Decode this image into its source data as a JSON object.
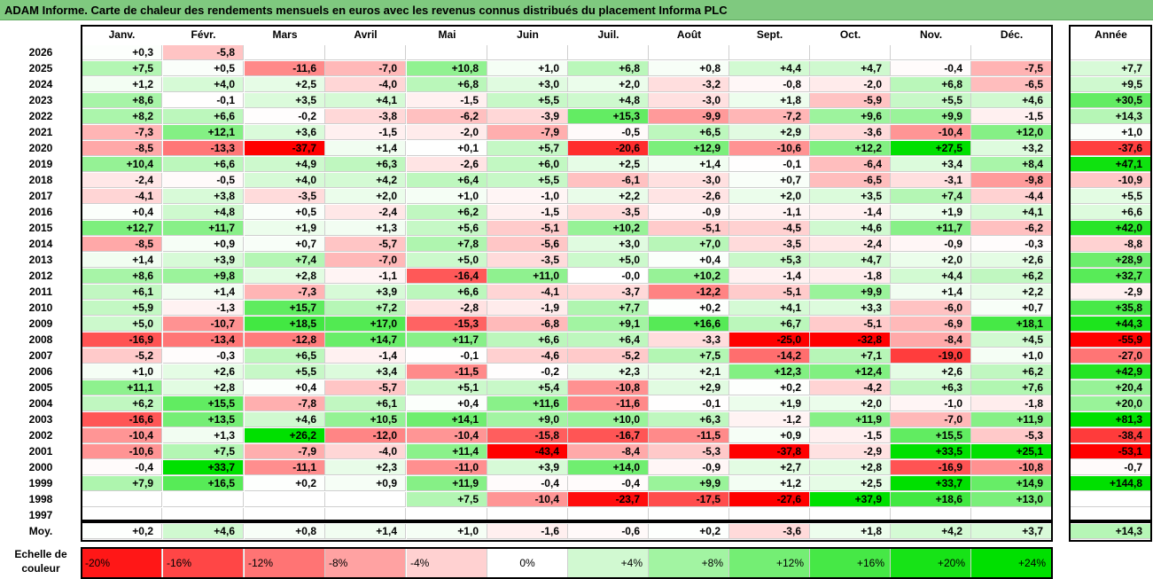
{
  "title": "ADAM Informe. Carte de chaleur des rendements mensuels en euros avec les revenus connus distribués du placement Informa PLC",
  "chart_data": {
    "type": "heatmap",
    "title": "ADAM Informe. Carte de chaleur des rendements mensuels en euros avec les revenus connus distribués du placement Informa PLC",
    "columns": [
      "Janv.",
      "Févr.",
      "Mars",
      "Avril",
      "Mai",
      "Juin",
      "Juil.",
      "Août",
      "Sept.",
      "Oct.",
      "Nov.",
      "Déc."
    ],
    "annual_header": "Année",
    "rows": [
      {
        "year": "2026",
        "values": [
          "+0,3",
          "-5,8",
          "",
          "",
          "",
          "",
          "",
          "",
          "",
          "",
          "",
          ""
        ],
        "annual": ""
      },
      {
        "year": "2025",
        "values": [
          "+7,5",
          "+0,5",
          "-11,6",
          "-7,0",
          "+10,8",
          "+1,0",
          "+6,8",
          "+0,8",
          "+4,4",
          "+4,7",
          "-0,4",
          "-7,5"
        ],
        "annual": "+7,7"
      },
      {
        "year": "2024",
        "values": [
          "+1,2",
          "+4,0",
          "+2,5",
          "-4,0",
          "+6,8",
          "+3,0",
          "+2,0",
          "-3,2",
          "-0,8",
          "-2,0",
          "+6,8",
          "-6,5"
        ],
        "annual": "+9,5"
      },
      {
        "year": "2023",
        "values": [
          "+8,6",
          "-0,1",
          "+3,5",
          "+4,1",
          "-1,5",
          "+5,5",
          "+4,8",
          "-3,0",
          "+1,8",
          "-5,9",
          "+5,5",
          "+4,6"
        ],
        "annual": "+30,5"
      },
      {
        "year": "2022",
        "values": [
          "+8,2",
          "+6,6",
          "-0,2",
          "-3,8",
          "-6,2",
          "-3,9",
          "+15,3",
          "-9,9",
          "-7,2",
          "+9,6",
          "+9,9",
          "-1,5"
        ],
        "annual": "+14,3"
      },
      {
        "year": "2021",
        "values": [
          "-7,3",
          "+12,1",
          "+3,6",
          "-1,5",
          "-2,0",
          "-7,9",
          "-0,5",
          "+6,5",
          "+2,9",
          "-3,6",
          "-10,4",
          "+12,0"
        ],
        "annual": "+1,0"
      },
      {
        "year": "2020",
        "values": [
          "-8,5",
          "-13,3",
          "-37,7",
          "+1,4",
          "+0,1",
          "+5,7",
          "-20,6",
          "+12,9",
          "-10,6",
          "+12,2",
          "+27,5",
          "+3,2"
        ],
        "annual": "-37,6"
      },
      {
        "year": "2019",
        "values": [
          "+10,4",
          "+6,6",
          "+4,9",
          "+6,3",
          "-2,6",
          "+6,0",
          "+2,5",
          "+1,4",
          "-0,1",
          "-6,4",
          "+3,4",
          "+8,4"
        ],
        "annual": "+47,1"
      },
      {
        "year": "2018",
        "values": [
          "-2,4",
          "-0,5",
          "+4,0",
          "+4,2",
          "+6,4",
          "+5,5",
          "-6,1",
          "-3,0",
          "+0,7",
          "-6,5",
          "-3,1",
          "-9,8"
        ],
        "annual": "-10,9"
      },
      {
        "year": "2017",
        "values": [
          "-4,1",
          "+3,8",
          "-3,5",
          "+2,0",
          "+1,0",
          "-1,0",
          "+2,2",
          "-2,6",
          "+2,0",
          "+3,5",
          "+7,4",
          "-4,4"
        ],
        "annual": "+5,5"
      },
      {
        "year": "2016",
        "values": [
          "+0,4",
          "+4,8",
          "+0,5",
          "-2,4",
          "+6,2",
          "-1,5",
          "-3,5",
          "-0,9",
          "-1,1",
          "-1,4",
          "+1,9",
          "+4,1"
        ],
        "annual": "+6,6"
      },
      {
        "year": "2015",
        "values": [
          "+12,7",
          "+11,7",
          "+1,9",
          "+1,3",
          "+5,6",
          "-5,1",
          "+10,2",
          "-5,1",
          "-4,5",
          "+4,6",
          "+11,7",
          "-6,2"
        ],
        "annual": "+42,0"
      },
      {
        "year": "2014",
        "values": [
          "-8,5",
          "+0,9",
          "+0,7",
          "-5,7",
          "+7,8",
          "-5,6",
          "+3,0",
          "+7,0",
          "-3,5",
          "-2,4",
          "-0,9",
          "-0,3"
        ],
        "annual": "-8,8"
      },
      {
        "year": "2013",
        "values": [
          "+1,4",
          "+3,9",
          "+7,4",
          "-7,0",
          "+5,0",
          "-3,5",
          "+5,0",
          "+0,4",
          "+5,3",
          "+4,7",
          "+2,0",
          "+2,6"
        ],
        "annual": "+28,9"
      },
      {
        "year": "2012",
        "values": [
          "+8,6",
          "+9,8",
          "+2,8",
          "-1,1",
          "-16,4",
          "+11,0",
          "-0,0",
          "+10,2",
          "-1,4",
          "-1,8",
          "+4,4",
          "+6,2"
        ],
        "annual": "+32,7"
      },
      {
        "year": "2011",
        "values": [
          "+6,1",
          "+1,4",
          "-7,3",
          "+3,9",
          "+6,6",
          "-4,1",
          "-3,7",
          "-12,2",
          "-5,1",
          "+9,9",
          "+1,4",
          "+2,2"
        ],
        "annual": "-2,9"
      },
      {
        "year": "2010",
        "values": [
          "+5,9",
          "-1,3",
          "+15,7",
          "+7,2",
          "-2,8",
          "-1,9",
          "+7,7",
          "+0,2",
          "+4,1",
          "+3,3",
          "-6,0",
          "+0,7"
        ],
        "annual": "+35,8"
      },
      {
        "year": "2009",
        "values": [
          "+5,0",
          "-10,7",
          "+18,5",
          "+17,0",
          "-15,3",
          "-6,8",
          "+9,1",
          "+16,6",
          "+6,7",
          "-5,1",
          "-6,9",
          "+18,1"
        ],
        "annual": "+44,3"
      },
      {
        "year": "2008",
        "values": [
          "-16,9",
          "-13,4",
          "-12,8",
          "+14,7",
          "+11,7",
          "+6,6",
          "+6,4",
          "-3,3",
          "-25,0",
          "-32,8",
          "-8,4",
          "+4,5"
        ],
        "annual": "-55,9"
      },
      {
        "year": "2007",
        "values": [
          "-5,2",
          "-0,3",
          "+6,5",
          "-1,4",
          "-0,1",
          "-4,6",
          "-5,2",
          "+7,5",
          "-14,2",
          "+7,1",
          "-19,0",
          "+1,0"
        ],
        "annual": "-27,0"
      },
      {
        "year": "2006",
        "values": [
          "+1,0",
          "+2,6",
          "+5,5",
          "+3,4",
          "-11,5",
          "-0,2",
          "+2,3",
          "+2,1",
          "+12,3",
          "+12,4",
          "+2,6",
          "+6,2"
        ],
        "annual": "+42,9"
      },
      {
        "year": "2005",
        "values": [
          "+11,1",
          "+2,8",
          "+0,4",
          "-5,7",
          "+5,1",
          "+5,4",
          "-10,8",
          "+2,9",
          "+0,2",
          "-4,2",
          "+6,3",
          "+7,6"
        ],
        "annual": "+20,4"
      },
      {
        "year": "2004",
        "values": [
          "+6,2",
          "+15,5",
          "-7,8",
          "+6,1",
          "+0,4",
          "+11,6",
          "-11,6",
          "-0,1",
          "+1,9",
          "+2,0",
          "-1,0",
          "-1,8"
        ],
        "annual": "+20,0"
      },
      {
        "year": "2003",
        "values": [
          "-16,6",
          "+13,5",
          "+4,6",
          "+10,5",
          "+14,1",
          "+9,0",
          "+10,0",
          "+6,3",
          "-1,2",
          "+11,9",
          "-7,0",
          "+11,9"
        ],
        "annual": "+81,3"
      },
      {
        "year": "2002",
        "values": [
          "-10,4",
          "+1,3",
          "+26,2",
          "-12,0",
          "-10,4",
          "-15,8",
          "-16,7",
          "-11,5",
          "+0,9",
          "-1,5",
          "+15,5",
          "-5,3"
        ],
        "annual": "-38,4"
      },
      {
        "year": "2001",
        "values": [
          "-10,6",
          "+7,5",
          "-7,9",
          "-4,0",
          "+11,4",
          "-43,4",
          "-8,4",
          "-5,3",
          "-37,8",
          "-2,9",
          "+33,5",
          "+25,1"
        ],
        "annual": "-53,1"
      },
      {
        "year": "2000",
        "values": [
          "-0,4",
          "+33,7",
          "-11,1",
          "+2,3",
          "-11,0",
          "+3,9",
          "+14,0",
          "-0,9",
          "+2,7",
          "+2,8",
          "-16,9",
          "-10,8"
        ],
        "annual": "-0,7"
      },
      {
        "year": "1999",
        "values": [
          "+7,9",
          "+16,5",
          "+0,2",
          "+0,9",
          "+11,9",
          "-0,4",
          "-0,4",
          "+9,9",
          "+1,2",
          "+2,5",
          "+33,7",
          "+14,9"
        ],
        "annual": "+144,8"
      },
      {
        "year": "1998",
        "values": [
          "",
          "",
          "",
          "",
          "+7,5",
          "-10,4",
          "-23,7",
          "-17,5",
          "-27,6",
          "+37,9",
          "+18,6",
          "+13,0"
        ],
        "annual": ""
      },
      {
        "year": "1997",
        "values": [
          "",
          "",
          "",
          "",
          "",
          "",
          "",
          "",
          "",
          "",
          "",
          ""
        ],
        "annual": ""
      }
    ],
    "average": {
      "label": "Moy.",
      "values": [
        "+0,2",
        "+4,6",
        "+0,8",
        "+1,4",
        "+1,0",
        "-1,6",
        "-0,6",
        "+0,2",
        "-3,6",
        "+1,8",
        "+4,2",
        "+3,7"
      ],
      "annual": "+14,3"
    },
    "legend": {
      "label_line1": "Echelle de",
      "label_line2": "couleur",
      "stops": [
        "-20%",
        "-16%",
        "-12%",
        "-8%",
        "-4%",
        "0%",
        "+4%",
        "+8%",
        "+12%",
        "+16%",
        "+20%",
        "+24%"
      ]
    },
    "colors": {
      "negative_max": "#ff0000",
      "neutral": "#ffffff",
      "positive_max": "#00e000"
    }
  }
}
